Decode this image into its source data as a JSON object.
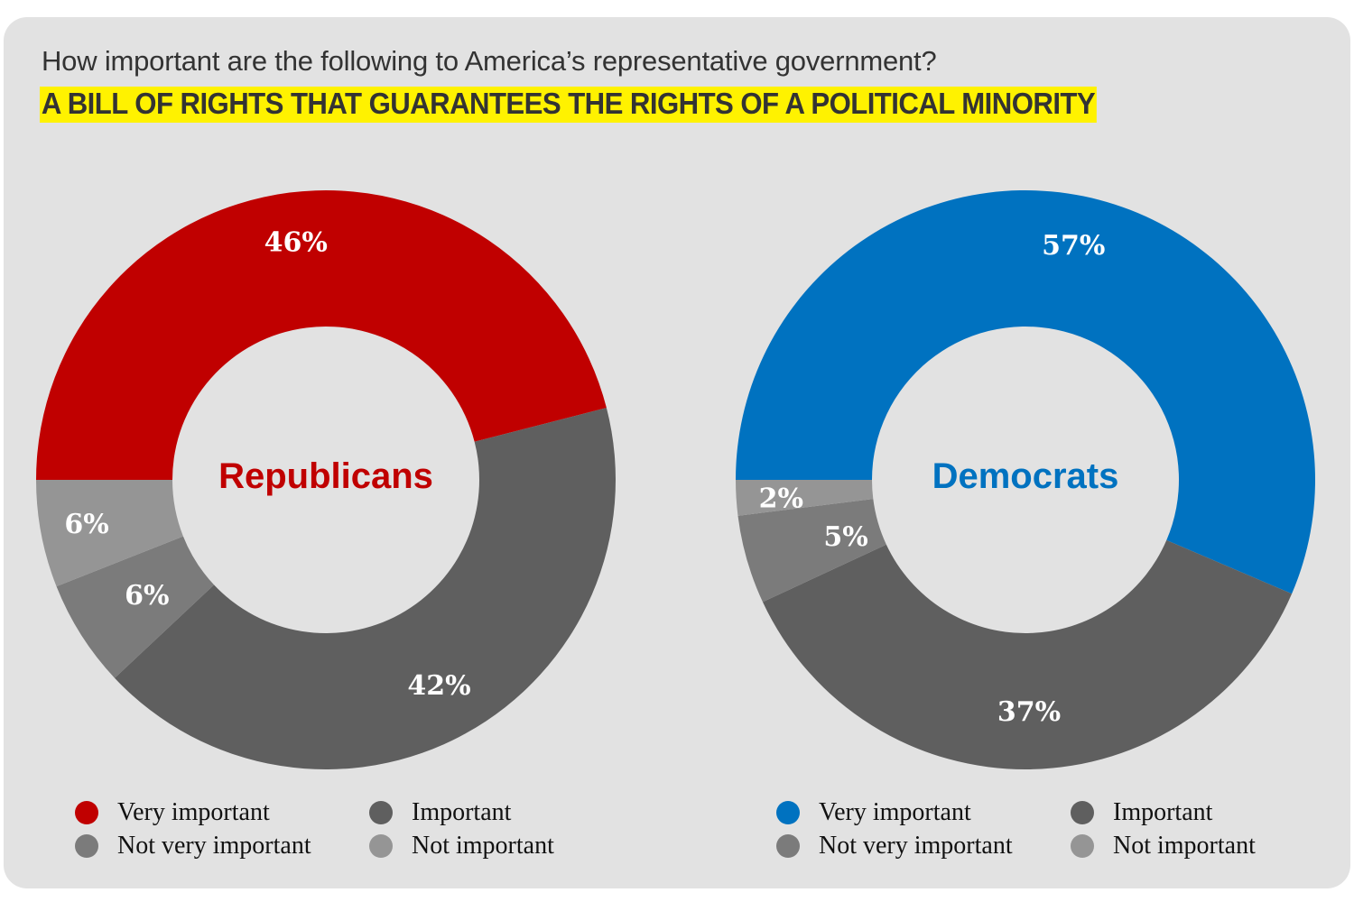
{
  "header": {
    "question": "How important are the following to America’s representative government?",
    "headline": "A BILL OF RIGHTS THAT GUARANTEES THE RIGHTS OF A POLITICAL MINORITY"
  },
  "colors": {
    "background": "#e2e2e2",
    "highlight": "#fff200",
    "republican": "#c00000",
    "democrat": "#0072c0",
    "important": "#5f5f5f",
    "not_very_important": "#7b7b7b",
    "not_important": "#959595"
  },
  "legend": {
    "republicans": [
      {
        "label": "Very important",
        "color": "#c00000"
      },
      {
        "label": "Important",
        "color": "#5f5f5f"
      },
      {
        "label": "Not very important",
        "color": "#7b7b7b"
      },
      {
        "label": "Not important",
        "color": "#959595"
      }
    ],
    "democrats": [
      {
        "label": "Very important",
        "color": "#0072c0"
      },
      {
        "label": "Important",
        "color": "#5f5f5f"
      },
      {
        "label": "Not very important",
        "color": "#7b7b7b"
      },
      {
        "label": "Not important",
        "color": "#959595"
      }
    ]
  },
  "chart_data": [
    {
      "type": "pie",
      "variant": "donut",
      "title": "Republicans",
      "title_color": "#c00000",
      "categories": [
        "Very important",
        "Important",
        "Not very important",
        "Not important"
      ],
      "values": [
        46,
        42,
        6,
        6
      ],
      "labels": [
        "46%",
        "42%",
        "6%",
        "6%"
      ],
      "colors": [
        "#c00000",
        "#5f5f5f",
        "#7b7b7b",
        "#959595"
      ],
      "start": "left",
      "direction": "clockwise"
    },
    {
      "type": "pie",
      "variant": "donut",
      "title": "Democrats",
      "title_color": "#0072c0",
      "categories": [
        "Very important",
        "Important",
        "Not very important",
        "Not important"
      ],
      "values": [
        57,
        37,
        5,
        2
      ],
      "labels": [
        "57%",
        "37%",
        "5%",
        "2%"
      ],
      "colors": [
        "#0072c0",
        "#5f5f5f",
        "#7b7b7b",
        "#959595"
      ],
      "start": "left",
      "direction": "clockwise",
      "note": "Printed percentages sum to 101% (likely rounding); slice angles are drawn proportionally to the printed values."
    }
  ]
}
